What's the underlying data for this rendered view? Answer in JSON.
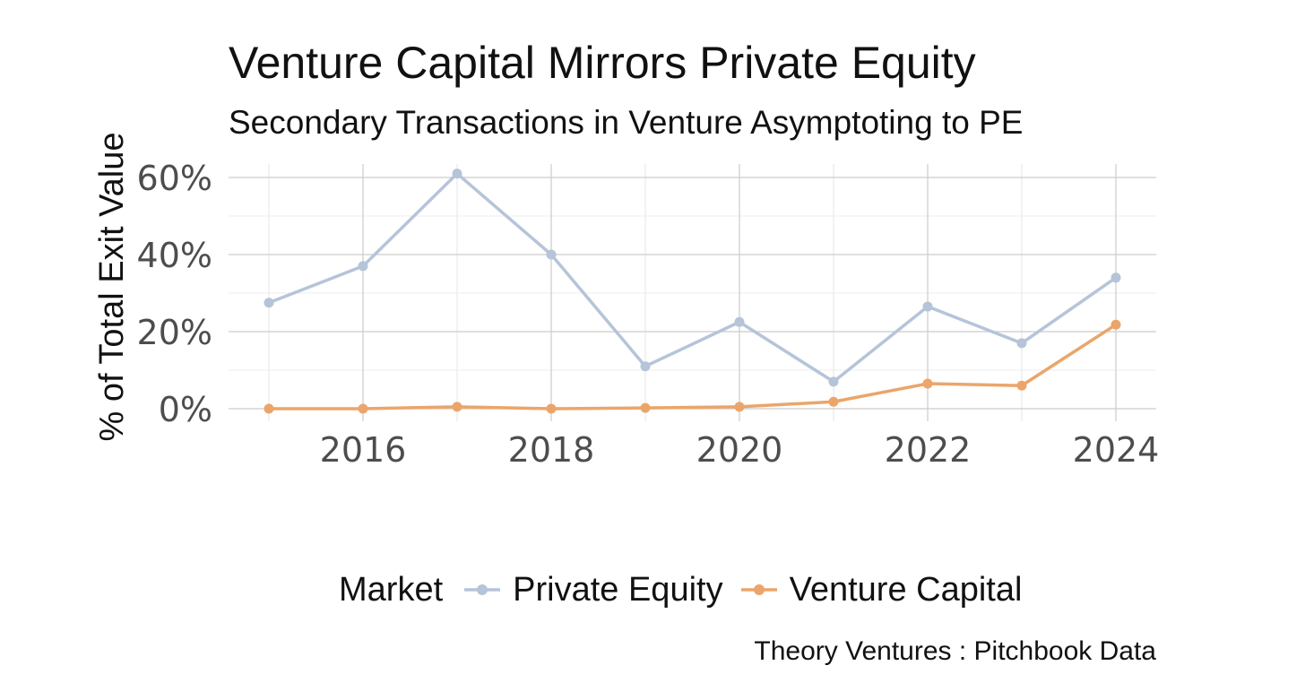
{
  "chart_data": {
    "type": "line",
    "title": "Venture Capital Mirrors Private Equity",
    "subtitle": "Secondary Transactions in Venture Asymptoting to PE",
    "xlabel": "",
    "ylabel": "% of Total Exit Value",
    "caption": "Theory Ventures : Pitchbook Data",
    "x": [
      2015,
      2016,
      2017,
      2018,
      2019,
      2020,
      2021,
      2022,
      2023,
      2024
    ],
    "xlim": [
      2015,
      2024
    ],
    "ylim": [
      0,
      61
    ],
    "x_ticks": [
      2016,
      2018,
      2020,
      2022,
      2024
    ],
    "x_tick_labels": [
      "2016",
      "2018",
      "2020",
      "2022",
      "2024"
    ],
    "y_ticks": [
      0,
      20,
      40,
      60
    ],
    "y_tick_labels": [
      "0%",
      "20%",
      "40%",
      "60%"
    ],
    "grid": true,
    "legend": {
      "title": "Market",
      "placement": "bottom"
    },
    "series": [
      {
        "name": "Private Equity",
        "color": "#b5c4d9",
        "values": [
          27.5,
          37,
          61,
          40,
          11,
          22.5,
          7,
          26.5,
          17,
          34
        ]
      },
      {
        "name": "Venture Capital",
        "color": "#eba56a",
        "values": [
          0,
          0,
          0.5,
          0,
          0.2,
          0.5,
          1.8,
          6.5,
          6,
          21.8
        ]
      }
    ]
  }
}
